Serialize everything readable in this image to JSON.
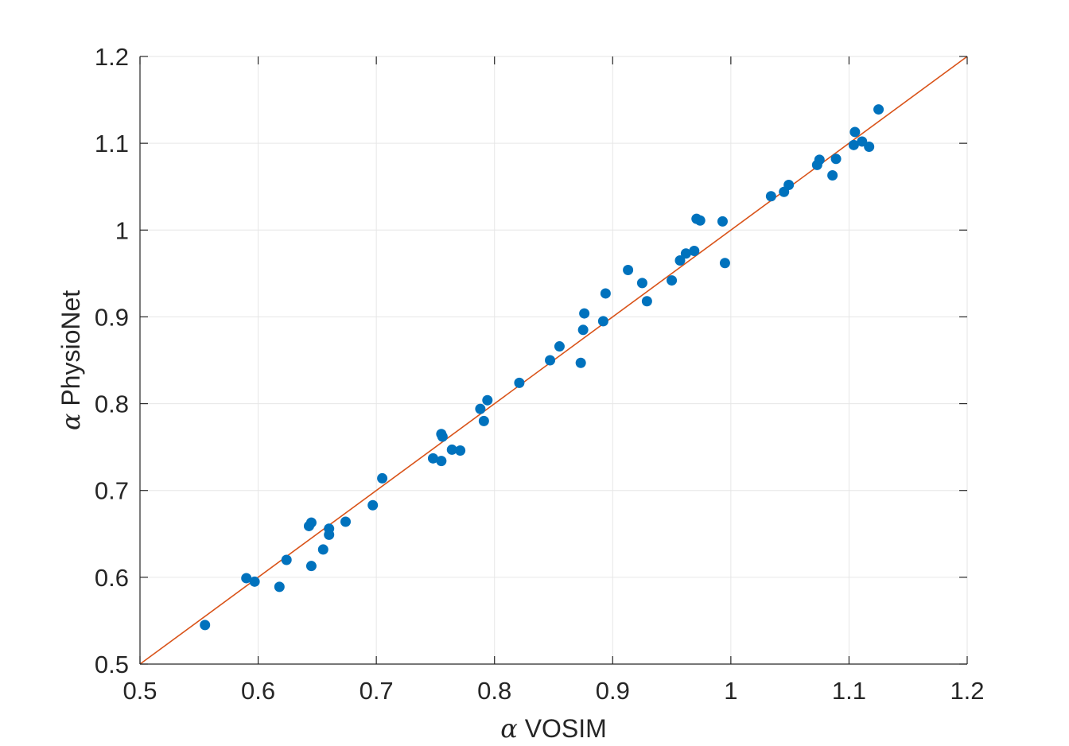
{
  "chart_data": {
    "type": "scatter",
    "title": "",
    "xlabel": "α VOSIM",
    "ylabel": "α PhysioNet",
    "xlim": [
      0.5,
      1.2
    ],
    "ylim": [
      0.5,
      1.2
    ],
    "xticks": [
      0.5,
      0.6,
      0.7,
      0.8,
      0.9,
      1,
      1.1,
      1.2
    ],
    "yticks": [
      0.5,
      0.6,
      0.7,
      0.8,
      0.9,
      1,
      1.1,
      1.2
    ],
    "xtick_labels": [
      "0.5",
      "0.6",
      "0.7",
      "0.8",
      "0.9",
      "1",
      "1.1",
      "1.2"
    ],
    "ytick_labels": [
      "0.5",
      "0.6",
      "0.7",
      "0.8",
      "0.9",
      "1",
      "1.1",
      "1.2"
    ],
    "grid": true,
    "legend": "none",
    "colors": {
      "points": "#0072BD",
      "reference_line": "#D95319",
      "grid": "#e6e6e6",
      "axis": "#262626"
    },
    "reference_line": {
      "from": [
        0.5,
        0.5
      ],
      "to": [
        1.2,
        1.2
      ]
    },
    "points": [
      [
        0.555,
        0.545
      ],
      [
        0.59,
        0.599
      ],
      [
        0.597,
        0.595
      ],
      [
        0.618,
        0.589
      ],
      [
        0.624,
        0.62
      ],
      [
        0.643,
        0.659
      ],
      [
        0.645,
        0.663
      ],
      [
        0.645,
        0.613
      ],
      [
        0.655,
        0.632
      ],
      [
        0.66,
        0.656
      ],
      [
        0.66,
        0.649
      ],
      [
        0.674,
        0.664
      ],
      [
        0.697,
        0.683
      ],
      [
        0.705,
        0.714
      ],
      [
        0.748,
        0.737
      ],
      [
        0.755,
        0.734
      ],
      [
        0.755,
        0.765
      ],
      [
        0.756,
        0.762
      ],
      [
        0.764,
        0.747
      ],
      [
        0.771,
        0.746
      ],
      [
        0.788,
        0.794
      ],
      [
        0.791,
        0.78
      ],
      [
        0.794,
        0.804
      ],
      [
        0.821,
        0.824
      ],
      [
        0.847,
        0.85
      ],
      [
        0.855,
        0.866
      ],
      [
        0.873,
        0.847
      ],
      [
        0.875,
        0.885
      ],
      [
        0.876,
        0.904
      ],
      [
        0.892,
        0.895
      ],
      [
        0.894,
        0.927
      ],
      [
        0.913,
        0.954
      ],
      [
        0.925,
        0.939
      ],
      [
        0.929,
        0.918
      ],
      [
        0.95,
        0.942
      ],
      [
        0.957,
        0.965
      ],
      [
        0.962,
        0.973
      ],
      [
        0.969,
        0.976
      ],
      [
        0.971,
        1.013
      ],
      [
        0.974,
        1.011
      ],
      [
        0.993,
        1.01
      ],
      [
        0.995,
        0.962
      ],
      [
        1.034,
        1.039
      ],
      [
        1.045,
        1.044
      ],
      [
        1.049,
        1.052
      ],
      [
        1.073,
        1.075
      ],
      [
        1.075,
        1.081
      ],
      [
        1.086,
        1.063
      ],
      [
        1.089,
        1.082
      ],
      [
        1.104,
        1.098
      ],
      [
        1.105,
        1.113
      ],
      [
        1.111,
        1.102
      ],
      [
        1.117,
        1.096
      ],
      [
        1.125,
        1.139
      ]
    ]
  }
}
